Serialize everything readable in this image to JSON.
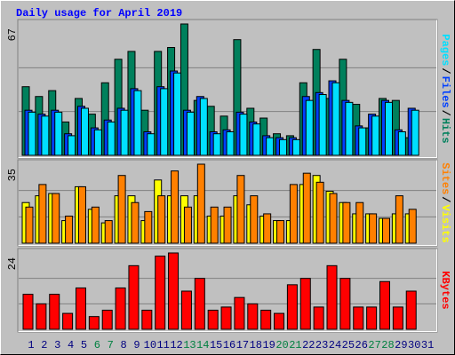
{
  "chart_data": [
    {
      "type": "bar",
      "title": "Daily usage for April 2019",
      "ylim": [
        0,
        67
      ],
      "yticks": [
        67
      ],
      "legend_separator": "/",
      "series": [
        {
          "name": "Hits",
          "color": "#00805c",
          "values": [
            35,
            30,
            33,
            17,
            29,
            21,
            37,
            49,
            53,
            23,
            53,
            55,
            67,
            28,
            25,
            20,
            59,
            24,
            19,
            11,
            10,
            37,
            54,
            29,
            49,
            26,
            14,
            29,
            28,
            9,
            null
          ]
        },
        {
          "name": "Files",
          "color": "#0040ff",
          "values": [
            23,
            21,
            23,
            11,
            25,
            14,
            18,
            24,
            34,
            12,
            35,
            43,
            23,
            30,
            12,
            13,
            22,
            17,
            10,
            9,
            9,
            30,
            32,
            38,
            28,
            15,
            21,
            28,
            13,
            24,
            null
          ]
        },
        {
          "name": "Pages",
          "color": "#00e0ff",
          "values": [
            22,
            20,
            22,
            10,
            24,
            13,
            17,
            23,
            33,
            11,
            34,
            42,
            22,
            29,
            11,
            12,
            21,
            16,
            9,
            8,
            8,
            28,
            31,
            37,
            27,
            14,
            20,
            27,
            12,
            23,
            null
          ]
        }
      ]
    },
    {
      "type": "bar",
      "ylim": [
        0,
        35
      ],
      "yticks": [
        35
      ],
      "legend_separator": "/",
      "series": [
        {
          "name": "Visits",
          "color": "#ffff00",
          "values": [
            18,
            21,
            22,
            10,
            25,
            15,
            9,
            21,
            21,
            10,
            28,
            21,
            21,
            21,
            12,
            12,
            21,
            17,
            12,
            10,
            10,
            26,
            30,
            23,
            18,
            13,
            13,
            11,
            13,
            13,
            null
          ]
        },
        {
          "name": "Sites",
          "color": "#ff8000",
          "values": [
            16,
            26,
            22,
            12,
            25,
            16,
            10,
            30,
            18,
            14,
            21,
            32,
            16,
            35,
            16,
            16,
            30,
            21,
            13,
            10,
            26,
            31,
            27,
            22,
            18,
            18,
            13,
            11,
            21,
            15,
            null
          ]
        }
      ]
    },
    {
      "type": "bar",
      "ylim": [
        0,
        24
      ],
      "yticks": [
        24
      ],
      "categories": [
        "1",
        "2",
        "3",
        "4",
        "5",
        "6",
        "7",
        "8",
        "9",
        "10",
        "11",
        "12",
        "13",
        "14",
        "15",
        "16",
        "17",
        "18",
        "19",
        "20",
        "21",
        "22",
        "23",
        "24",
        "25",
        "26",
        "27",
        "28",
        "29",
        "30",
        "31"
      ],
      "category_color": "#000080",
      "weekend_color": "#008040",
      "weekends": [
        5,
        6,
        12,
        13,
        19,
        20,
        26,
        27
      ],
      "series": [
        {
          "name": "KBytes",
          "color": "#ff0000",
          "values": [
            11,
            8,
            11,
            5,
            13,
            4,
            6,
            13,
            20,
            6,
            23,
            24,
            12,
            16,
            6,
            7,
            10,
            8,
            6,
            5,
            14,
            16,
            7,
            20,
            16,
            7,
            7,
            15,
            7,
            12,
            null
          ]
        }
      ]
    }
  ]
}
